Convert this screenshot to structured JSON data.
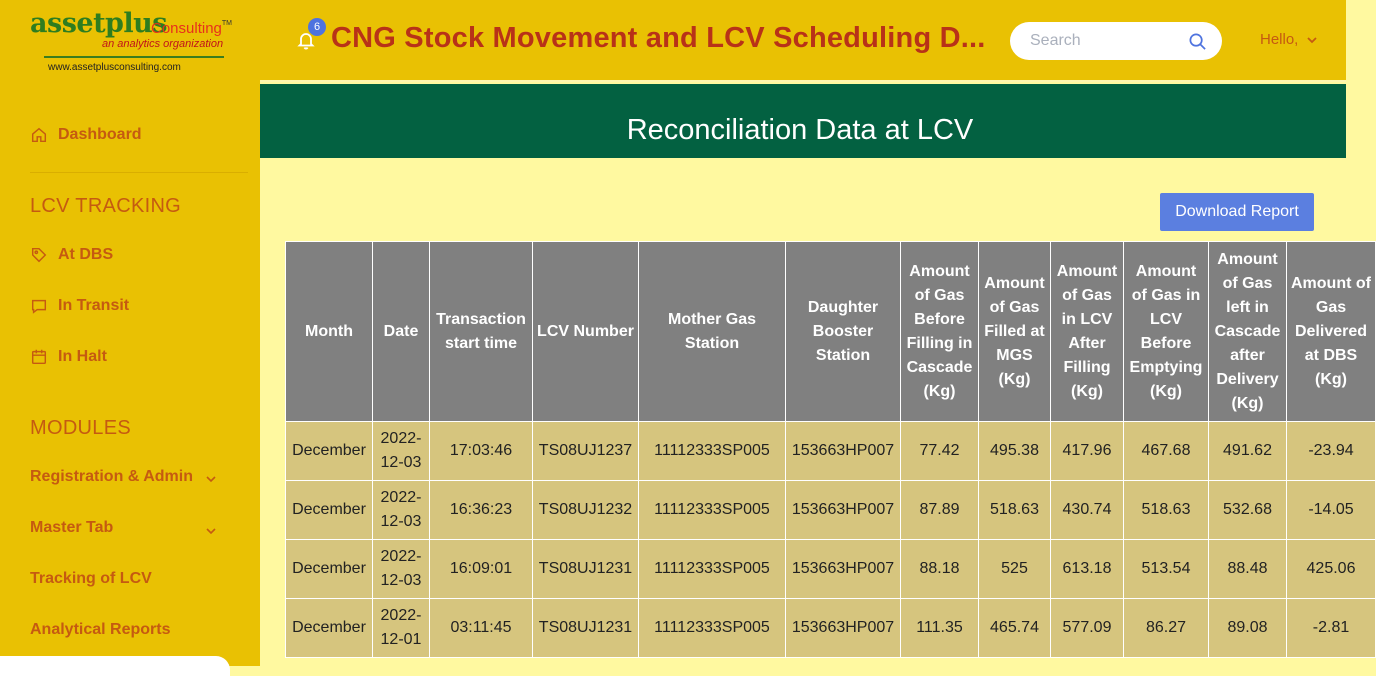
{
  "brand": {
    "name": "assetplus",
    "consulting": "Consulting",
    "tm": "TM",
    "tagline": "an analytics organization",
    "url": "www.assetplusconsulting.com"
  },
  "header": {
    "title": "CNG Stock Movement and LCV Scheduling D...",
    "notifications_count": "6",
    "search_placeholder": "Search",
    "greeting": "Hello,"
  },
  "sidebar": {
    "dashboard": "Dashboard",
    "lcv_tracking_title": "LCV TRACKING",
    "lcv_items": [
      "At DBS",
      "In Transit",
      "In Halt"
    ],
    "modules_title": "MODULES",
    "modules": [
      "Registration & Admin",
      "Master Tab",
      "Tracking of LCV",
      "Analytical Reports"
    ]
  },
  "page": {
    "title": "Reconciliation Data at LCV",
    "download_label": "Download Report"
  },
  "table": {
    "headers": [
      "Month",
      "Date",
      "Transaction start time",
      "LCV Number",
      "Mother Gas Station",
      "Daughter Booster Station",
      "Amount of Gas Before Filling in Cascade (Kg)",
      "Amount of Gas Filled at MGS (Kg)",
      "Amount of Gas in LCV After Filling (Kg)",
      "Amount of Gas in LCV Before Emptying (Kg)",
      "Amount of Gas left in Cascade after Delivery (Kg)",
      "Amount of Gas Delivered at DBS (Kg)"
    ],
    "rows": [
      [
        "December",
        "2022-12-03",
        "17:03:46",
        "TS08UJ1237",
        "11112333SP005",
        "153663HP007",
        "77.42",
        "495.38",
        "417.96",
        "467.68",
        "491.62",
        "-23.94"
      ],
      [
        "December",
        "2022-12-03",
        "16:36:23",
        "TS08UJ1232",
        "11112333SP005",
        "153663HP007",
        "87.89",
        "518.63",
        "430.74",
        "518.63",
        "532.68",
        "-14.05"
      ],
      [
        "December",
        "2022-12-03",
        "16:09:01",
        "TS08UJ1231",
        "11112333SP005",
        "153663HP007",
        "88.18",
        "525",
        "613.18",
        "513.54",
        "88.48",
        "425.06"
      ],
      [
        "December",
        "2022-12-01",
        "03:11:45",
        "TS08UJ1231",
        "11112333SP005",
        "153663HP007",
        "111.35",
        "465.74",
        "577.09",
        "86.27",
        "89.08",
        "-2.81"
      ]
    ]
  },
  "colors": {
    "sidebar_bg": "#e9c103",
    "banner_bg": "#036141",
    "content_bg": "#fff9a0",
    "accent_text": "#c55a11",
    "title_text": "#b83218",
    "button_bg": "#5b7fe0",
    "table_header_bg": "#808080",
    "table_cell_bg": "#d6c57e"
  },
  "icons": {
    "dashboard": "home-icon",
    "at_dbs": "tag-icon",
    "in_transit": "message-icon",
    "in_halt": "calendar-icon",
    "bell": "bell-icon",
    "search": "search-icon",
    "chevron": "chevron-down-icon"
  }
}
